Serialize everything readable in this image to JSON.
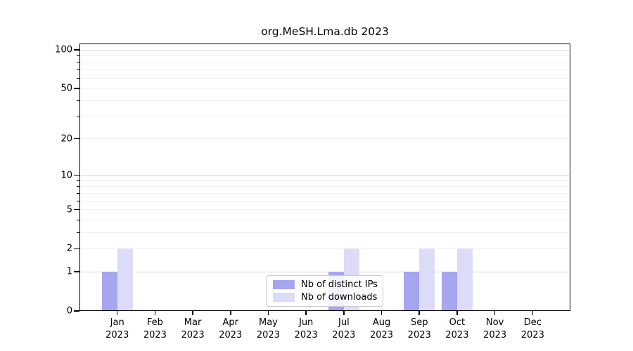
{
  "title": "org.MeSH.Lma.db 2023",
  "chart_data": {
    "type": "bar",
    "title": "org.MeSH.Lma.db 2023",
    "x_months": [
      "Jan",
      "Feb",
      "Mar",
      "Apr",
      "May",
      "Jun",
      "Jul",
      "Aug",
      "Sep",
      "Oct",
      "Nov",
      "Dec"
    ],
    "x_year": "2023",
    "series": [
      {
        "name": "Nb of distinct IPs",
        "color": "#a5a5f0",
        "values": [
          1,
          0,
          0,
          0,
          0,
          0,
          1,
          0,
          1,
          1,
          0,
          0
        ]
      },
      {
        "name": "Nb of downloads",
        "color": "#dcdcf8",
        "values": [
          2,
          0,
          0,
          0,
          0,
          0,
          2,
          0,
          2,
          2,
          0,
          0
        ]
      }
    ],
    "y_ticks": [
      0,
      1,
      2,
      5,
      10,
      20,
      50,
      100
    ],
    "y_minor_ticks": [
      3,
      4,
      6,
      7,
      8,
      9,
      30,
      40,
      60,
      70,
      80,
      90
    ],
    "y_scale": "log1p",
    "ylim": [
      0,
      112
    ],
    "grid": "horizontal",
    "legend_position": "lower center",
    "colors": {
      "major_grid": "#d5d5d5",
      "minor_grid": "#efefef",
      "axis": "#000000"
    }
  }
}
